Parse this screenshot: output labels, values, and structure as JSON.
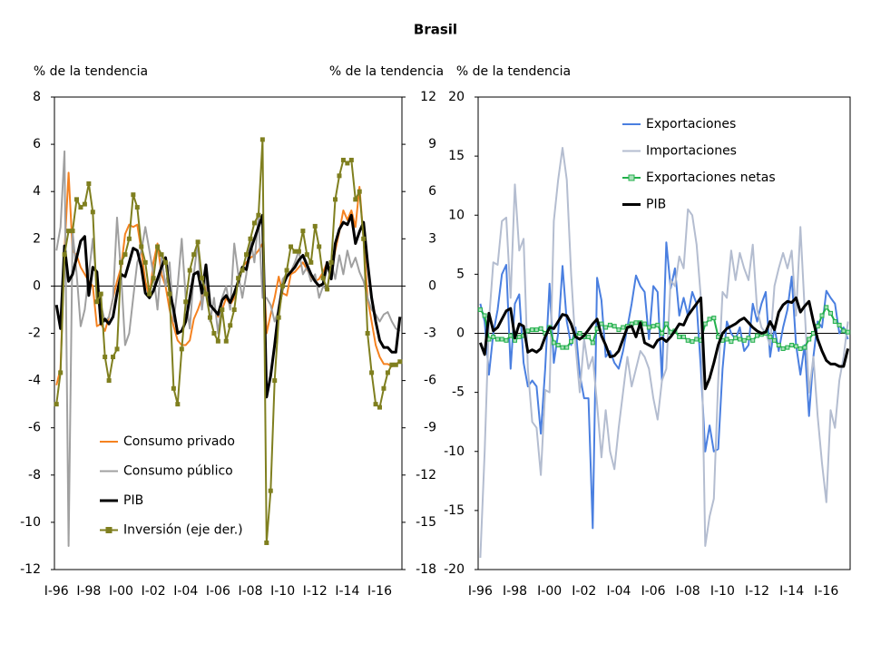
{
  "title": "Brasil",
  "chart_data": [
    {
      "type": "line",
      "y_label": "% de la tendencia",
      "y2_label": "% de la tendencia",
      "categories": [
        "I-96",
        null,
        null,
        null,
        null,
        null,
        null,
        null,
        "I-98",
        null,
        null,
        null,
        null,
        null,
        null,
        null,
        "I-00",
        null,
        null,
        null,
        null,
        null,
        null,
        null,
        "I-02",
        null,
        null,
        null,
        null,
        null,
        null,
        null,
        "I-04",
        null,
        null,
        null,
        null,
        null,
        null,
        null,
        "I-06",
        null,
        null,
        null,
        null,
        null,
        null,
        null,
        "I-08",
        null,
        null,
        null,
        null,
        null,
        null,
        null,
        "I-10",
        null,
        null,
        null,
        null,
        null,
        null,
        null,
        "I-12",
        null,
        null,
        null,
        null,
        null,
        null,
        null,
        "I-14",
        null,
        null,
        null,
        null,
        null,
        null,
        null,
        "I-16",
        null,
        null,
        null,
        null,
        null
      ],
      "ylim": [
        -12,
        8
      ],
      "yticks": [
        -12,
        -10,
        -8,
        -6,
        -4,
        -2,
        0,
        2,
        4,
        6,
        8
      ],
      "y2lim": [
        -18,
        12
      ],
      "y2ticks": [
        -18,
        -15,
        -12,
        -9,
        -6,
        -3,
        0,
        3,
        6,
        9,
        12
      ],
      "series": [
        {
          "name": "Consumo privado",
          "color": "#f58220",
          "values": [
            -4.2,
            -3.5,
            1.5,
            4.8,
            1.5,
            1.3,
            0.8,
            0.5,
            0.2,
            0.0,
            -1.7,
            -1.6,
            -1.9,
            -1.3,
            -0.5,
            0.2,
            0.8,
            2.2,
            2.6,
            2.5,
            2.6,
            1.5,
            0.2,
            -0.5,
            1.0,
            1.8,
            0.5,
            0.0,
            -1.0,
            -1.7,
            -2.3,
            -2.5,
            -2.5,
            -2.3,
            -1.4,
            -1.0,
            -0.5,
            0.0,
            -0.8,
            -1.0,
            -1.3,
            -1.0,
            -0.5,
            -0.8,
            -0.5,
            0.3,
            0.8,
            1.0,
            1.2,
            1.3,
            1.5,
            1.8,
            -2.0,
            -1.2,
            -0.5,
            0.4,
            -0.3,
            -0.4,
            0.5,
            0.6,
            0.8,
            1.0,
            0.7,
            0.4,
            0.2,
            0.3,
            0.6,
            1.0,
            0.5,
            1.5,
            2.3,
            3.2,
            2.8,
            3.2,
            2.5,
            4.2,
            2.0,
            -0.5,
            -1.5,
            -2.5,
            -3.0,
            -3.3,
            -3.3,
            -3.4,
            -3.3,
            -3.2
          ]
        },
        {
          "name": "Consumo público",
          "color": "#a0a0a0",
          "values": [
            1.5,
            2.5,
            5.7,
            -11.0,
            2.3,
            0.5,
            -1.7,
            -1.0,
            0.5,
            2.0,
            0.0,
            -0.8,
            -1.5,
            -1.3,
            -0.5,
            2.9,
            0.5,
            -2.5,
            -2.0,
            -0.5,
            1.0,
            1.5,
            2.5,
            1.5,
            0.5,
            -1.0,
            1.2,
            0.0,
            1.0,
            -1.5,
            0.0,
            2.0,
            -0.5,
            -1.8,
            0.5,
            1.9,
            -1.0,
            0.5,
            -1.5,
            -0.5,
            -2.0,
            -0.5,
            0.0,
            -1.0,
            1.8,
            0.5,
            -0.5,
            0.5,
            2.0,
            1.0,
            2.9,
            -0.5,
            -0.5,
            -0.8,
            -1.5,
            -1.0,
            0.3,
            0.5,
            0.6,
            1.0,
            1.5,
            0.5,
            0.8,
            0.2,
            0.5,
            -0.5,
            0.0,
            -0.2,
            1.0,
            0.3,
            1.3,
            0.5,
            1.5,
            0.8,
            1.2,
            0.6,
            0.2,
            -0.5,
            -1.0,
            -1.2,
            -1.5,
            -1.2,
            -1.1,
            -1.5,
            -1.8,
            -1.9
          ]
        },
        {
          "name": "PIB",
          "color": "#000000",
          "width": 3,
          "values": [
            -0.8,
            -1.8,
            1.7,
            0.2,
            0.5,
            1.2,
            1.9,
            2.1,
            -0.4,
            0.8,
            0.6,
            -1.6,
            -1.4,
            -1.6,
            -1.3,
            -0.3,
            0.5,
            0.4,
            1.0,
            1.6,
            1.5,
            0.8,
            -0.3,
            -0.5,
            -0.2,
            0.3,
            0.8,
            1.2,
            -0.2,
            -1.0,
            -2.0,
            -1.9,
            -1.5,
            -0.5,
            0.5,
            0.6,
            -0.3,
            0.9,
            -0.8,
            -1.0,
            -1.2,
            -0.6,
            -0.4,
            -0.7,
            -0.3,
            0.2,
            0.8,
            0.7,
            1.5,
            2.0,
            2.5,
            3.0,
            -4.7,
            -3.8,
            -2.5,
            -1.0,
            0.0,
            0.4,
            0.6,
            0.8,
            1.1,
            1.3,
            0.9,
            0.5,
            0.2,
            0.0,
            0.1,
            1.0,
            0.3,
            1.8,
            2.4,
            2.7,
            2.6,
            3.0,
            1.8,
            2.3,
            2.7,
            1.0,
            -0.5,
            -1.5,
            -2.3,
            -2.6,
            -2.6,
            -2.8,
            -2.8,
            -1.3
          ]
        },
        {
          "name": "Inversión (eje der.)",
          "color": "#7f7f1f",
          "axis": "y2",
          "marker": "square",
          "values": [
            -7.5,
            -5.5,
            2.0,
            3.5,
            3.5,
            5.5,
            5.0,
            5.2,
            6.5,
            4.7,
            -1.0,
            -0.5,
            -4.5,
            -6.0,
            -4.5,
            -4.0,
            1.5,
            2.0,
            3.0,
            5.8,
            5.0,
            2.5,
            1.5,
            -0.5,
            0.5,
            2.5,
            2.0,
            1.5,
            -0.5,
            -6.5,
            -7.5,
            -4.0,
            -1.0,
            1.0,
            2.0,
            2.8,
            0.5,
            -0.5,
            -2.0,
            -3.0,
            -3.5,
            -1.5,
            -3.5,
            -2.5,
            -1.5,
            0.5,
            1.0,
            2.0,
            3.0,
            4.0,
            4.5,
            9.3,
            -16.3,
            -13.0,
            -6.0,
            -2.0,
            0.0,
            1.0,
            2.5,
            2.2,
            2.2,
            3.5,
            2.0,
            1.5,
            3.8,
            2.5,
            0.5,
            -0.2,
            1.5,
            5.5,
            7.0,
            8.0,
            7.8,
            8.0,
            5.5,
            6.0,
            3.0,
            -3.0,
            -5.5,
            -7.5,
            -7.7,
            -6.5,
            -5.5,
            -5.0,
            -5.0,
            -4.8
          ]
        }
      ]
    },
    {
      "type": "line",
      "y_label": "% de la tendencia",
      "categories": [
        "I-96",
        null,
        null,
        null,
        null,
        null,
        null,
        null,
        "I-98",
        null,
        null,
        null,
        null,
        null,
        null,
        null,
        "I-00",
        null,
        null,
        null,
        null,
        null,
        null,
        null,
        "I-02",
        null,
        null,
        null,
        null,
        null,
        null,
        null,
        "I-04",
        null,
        null,
        null,
        null,
        null,
        null,
        null,
        "I-06",
        null,
        null,
        null,
        null,
        null,
        null,
        null,
        "I-08",
        null,
        null,
        null,
        null,
        null,
        null,
        null,
        "I-10",
        null,
        null,
        null,
        null,
        null,
        null,
        null,
        "I-12",
        null,
        null,
        null,
        null,
        null,
        null,
        null,
        "I-14",
        null,
        null,
        null,
        null,
        null,
        null,
        null,
        "I-16",
        null,
        null,
        null,
        null,
        null
      ],
      "ylim": [
        -20,
        20
      ],
      "yticks": [
        -20,
        -15,
        -10,
        -5,
        0,
        5,
        10,
        15,
        20
      ],
      "series": [
        {
          "name": "Exportaciones",
          "color": "#4a7fe0",
          "values": [
            2.5,
            1.0,
            -3.5,
            0.0,
            2.0,
            5.0,
            5.8,
            -3.0,
            2.5,
            3.3,
            -2.5,
            -4.5,
            -4.0,
            -4.5,
            -8.5,
            -3.0,
            4.2,
            -2.5,
            0.0,
            5.7,
            1.0,
            -1.0,
            0.5,
            -3.5,
            -5.5,
            -5.5,
            -16.5,
            4.7,
            2.8,
            -2.0,
            -1.5,
            -2.5,
            -3.0,
            -1.5,
            0.5,
            2.5,
            4.9,
            4.0,
            3.5,
            -0.5,
            4.0,
            3.5,
            -4.0,
            7.7,
            3.8,
            5.5,
            1.5,
            3.0,
            1.5,
            3.5,
            2.5,
            -3.0,
            -10.0,
            -7.8,
            -10.0,
            -9.8,
            -3.0,
            1.0,
            0.0,
            -0.5,
            0.5,
            -1.5,
            -1.0,
            2.5,
            1.0,
            2.5,
            3.5,
            -2.0,
            0.5,
            -1.5,
            0.5,
            2.0,
            4.8,
            -1.0,
            -3.5,
            -1.0,
            -7.0,
            -2.0,
            1.0,
            0.5,
            3.6,
            3.0,
            2.5,
            0.0,
            0.5,
            -0.5
          ]
        },
        {
          "name": "Importaciones",
          "color": "#b4bdd0",
          "values": [
            -19.0,
            -10.0,
            1.0,
            6.0,
            5.8,
            9.5,
            9.8,
            3.0,
            12.6,
            7.0,
            8.0,
            -3.0,
            -7.5,
            -8.0,
            -12.0,
            -4.8,
            -5.0,
            9.5,
            13.0,
            15.7,
            13.0,
            5.0,
            -1.0,
            -5.0,
            -0.5,
            -3.0,
            -2.0,
            -6.0,
            -10.5,
            -6.5,
            -10.0,
            -11.5,
            -8.0,
            -5.0,
            -2.0,
            -4.5,
            -3.0,
            -1.5,
            -2.0,
            -3.0,
            -5.5,
            -7.3,
            -4.0,
            -3.0,
            4.5,
            4.0,
            6.5,
            5.5,
            10.5,
            10.0,
            7.5,
            3.0,
            -18.0,
            -15.5,
            -14.0,
            -4.0,
            3.5,
            3.0,
            7.0,
            4.5,
            6.8,
            5.5,
            4.5,
            7.5,
            2.0,
            0.5,
            0.0,
            -1.0,
            4.0,
            5.5,
            6.8,
            5.5,
            7.0,
            1.5,
            9.0,
            2.0,
            -5.0,
            -2.0,
            -7.0,
            -11.0,
            -14.3,
            -6.5,
            -8.0,
            -4.0,
            -2.0,
            1.0
          ]
        },
        {
          "name": "Exportaciones netas",
          "color": "#22b04b",
          "marker": "square",
          "values": [
            2.0,
            1.5,
            -0.5,
            -0.3,
            -0.5,
            -0.5,
            -0.6,
            -0.2,
            -0.6,
            -0.3,
            -0.2,
            0.2,
            0.3,
            0.3,
            0.4,
            0.0,
            0.5,
            -0.8,
            -1.0,
            -1.2,
            -1.2,
            -0.7,
            -0.2,
            0.0,
            -0.3,
            -0.3,
            -0.8,
            0.4,
            0.8,
            0.5,
            0.7,
            0.6,
            0.3,
            0.5,
            0.6,
            0.8,
            0.9,
            0.9,
            0.8,
            0.5,
            0.6,
            0.7,
            0.0,
            0.8,
            0.1,
            0.2,
            -0.3,
            -0.3,
            -0.6,
            -0.7,
            -0.5,
            -0.6,
            0.8,
            1.2,
            1.3,
            -0.3,
            -0.6,
            -0.5,
            -0.7,
            -0.4,
            -0.5,
            -0.6,
            -0.4,
            -0.6,
            -0.2,
            -0.1,
            0.0,
            -0.3,
            -0.6,
            -1.0,
            -1.3,
            -1.2,
            -1.0,
            -1.1,
            -1.3,
            -1.2,
            -0.5,
            0.0,
            0.6,
            1.5,
            2.2,
            1.7,
            1.0,
            0.7,
            0.2,
            0.1
          ]
        },
        {
          "name": "PIB",
          "color": "#000000",
          "width": 3,
          "values": [
            -0.8,
            -1.8,
            1.7,
            0.2,
            0.5,
            1.2,
            1.9,
            2.1,
            -0.4,
            0.8,
            0.6,
            -1.6,
            -1.4,
            -1.6,
            -1.3,
            -0.3,
            0.5,
            0.4,
            1.0,
            1.6,
            1.5,
            0.8,
            -0.3,
            -0.5,
            -0.2,
            0.3,
            0.8,
            1.2,
            -0.2,
            -1.0,
            -2.0,
            -1.9,
            -1.5,
            -0.5,
            0.5,
            0.6,
            -0.3,
            0.9,
            -0.8,
            -1.0,
            -1.2,
            -0.6,
            -0.4,
            -0.7,
            -0.3,
            0.2,
            0.8,
            0.7,
            1.5,
            2.0,
            2.5,
            3.0,
            -4.7,
            -3.8,
            -2.5,
            -1.0,
            0.0,
            0.4,
            0.6,
            0.8,
            1.1,
            1.3,
            0.9,
            0.5,
            0.2,
            0.0,
            0.1,
            1.0,
            0.3,
            1.8,
            2.4,
            2.7,
            2.6,
            3.0,
            1.8,
            2.3,
            2.7,
            1.0,
            -0.5,
            -1.5,
            -2.3,
            -2.6,
            -2.6,
            -2.8,
            -2.8,
            -1.3
          ]
        }
      ]
    }
  ]
}
